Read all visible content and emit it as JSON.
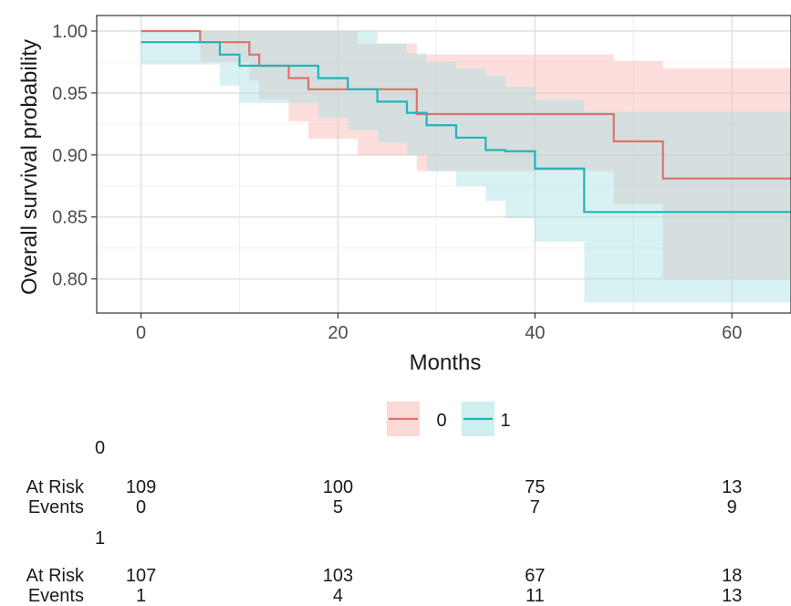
{
  "chart_data": {
    "type": "line",
    "subtype": "kaplan-meier",
    "xlabel": "Months",
    "ylabel": "Overall survival probability",
    "xlim": [
      -4.5,
      66
    ],
    "ylim": [
      0.7725,
      1.0125
    ],
    "x_ticks": [
      0,
      20,
      40,
      60
    ],
    "x_tick_labels": [
      "0",
      "20",
      "40",
      "60"
    ],
    "y_ticks": [
      0.8,
      0.85,
      0.9,
      0.95,
      1.0
    ],
    "y_tick_labels": [
      "0.80",
      "0.85",
      "0.90",
      "0.95",
      "1.00"
    ],
    "grid": true,
    "legend_position": "bottom",
    "colors": {
      "0": "#E0716A",
      "1": "#1FB5BB"
    },
    "series": [
      {
        "name": "0",
        "color": "#E0716A",
        "band_color": "#F8B9B4",
        "steps": [
          [
            0,
            1.0
          ],
          [
            6,
            0.991
          ],
          [
            11,
            0.981
          ],
          [
            12,
            0.972
          ],
          [
            15,
            0.962
          ],
          [
            17,
            0.953
          ],
          [
            22,
            0.953
          ],
          [
            28,
            0.933
          ],
          [
            48,
            0.911
          ],
          [
            53,
            0.881
          ],
          [
            66,
            0.881
          ]
        ],
        "ci": [
          [
            0,
            1.0,
            1.0
          ],
          [
            6,
            1.0,
            0.975
          ],
          [
            11,
            1.0,
            0.96
          ],
          [
            12,
            1.0,
            0.945
          ],
          [
            15,
            1.0,
            0.927
          ],
          [
            17,
            1.0,
            0.913
          ],
          [
            22,
            0.99,
            0.9
          ],
          [
            28,
            0.981,
            0.887
          ],
          [
            48,
            0.976,
            0.86
          ],
          [
            53,
            0.97,
            0.8
          ],
          [
            66,
            0.97,
            0.8
          ]
        ]
      },
      {
        "name": "1",
        "color": "#1FB5BB",
        "band_color": "#A8E0E3",
        "steps": [
          [
            0,
            0.991
          ],
          [
            8,
            0.981
          ],
          [
            10,
            0.972
          ],
          [
            18,
            0.962
          ],
          [
            21,
            0.953
          ],
          [
            24,
            0.943
          ],
          [
            27,
            0.934
          ],
          [
            29,
            0.924
          ],
          [
            32,
            0.914
          ],
          [
            35,
            0.904
          ],
          [
            37,
            0.903
          ],
          [
            40,
            0.889
          ],
          [
            45,
            0.854
          ],
          [
            66,
            0.854
          ]
        ],
        "ci": [
          [
            0,
            1.0,
            0.973
          ],
          [
            8,
            1.0,
            0.956
          ],
          [
            10,
            1.0,
            0.942
          ],
          [
            18,
            1.0,
            0.93
          ],
          [
            21,
            1.0,
            0.92
          ],
          [
            24,
            0.99,
            0.91
          ],
          [
            27,
            0.982,
            0.9
          ],
          [
            29,
            0.975,
            0.887
          ],
          [
            32,
            0.97,
            0.875
          ],
          [
            35,
            0.964,
            0.863
          ],
          [
            37,
            0.955,
            0.849
          ],
          [
            40,
            0.945,
            0.83
          ],
          [
            45,
            0.935,
            0.781
          ],
          [
            66,
            0.935,
            0.781
          ]
        ]
      }
    ],
    "legend": {
      "entries": [
        "0",
        "1"
      ]
    },
    "risk_table": {
      "time_points": [
        0,
        20,
        40,
        60
      ],
      "row_labels": [
        "At Risk",
        "Events"
      ],
      "groups": [
        {
          "name": "0",
          "at_risk": [
            "109",
            "100",
            "75",
            "13"
          ],
          "events": [
            "0",
            "5",
            "7",
            "9"
          ]
        },
        {
          "name": "1",
          "at_risk": [
            "107",
            "103",
            "67",
            "18"
          ],
          "events": [
            "1",
            "4",
            "11",
            "13"
          ]
        }
      ]
    }
  }
}
